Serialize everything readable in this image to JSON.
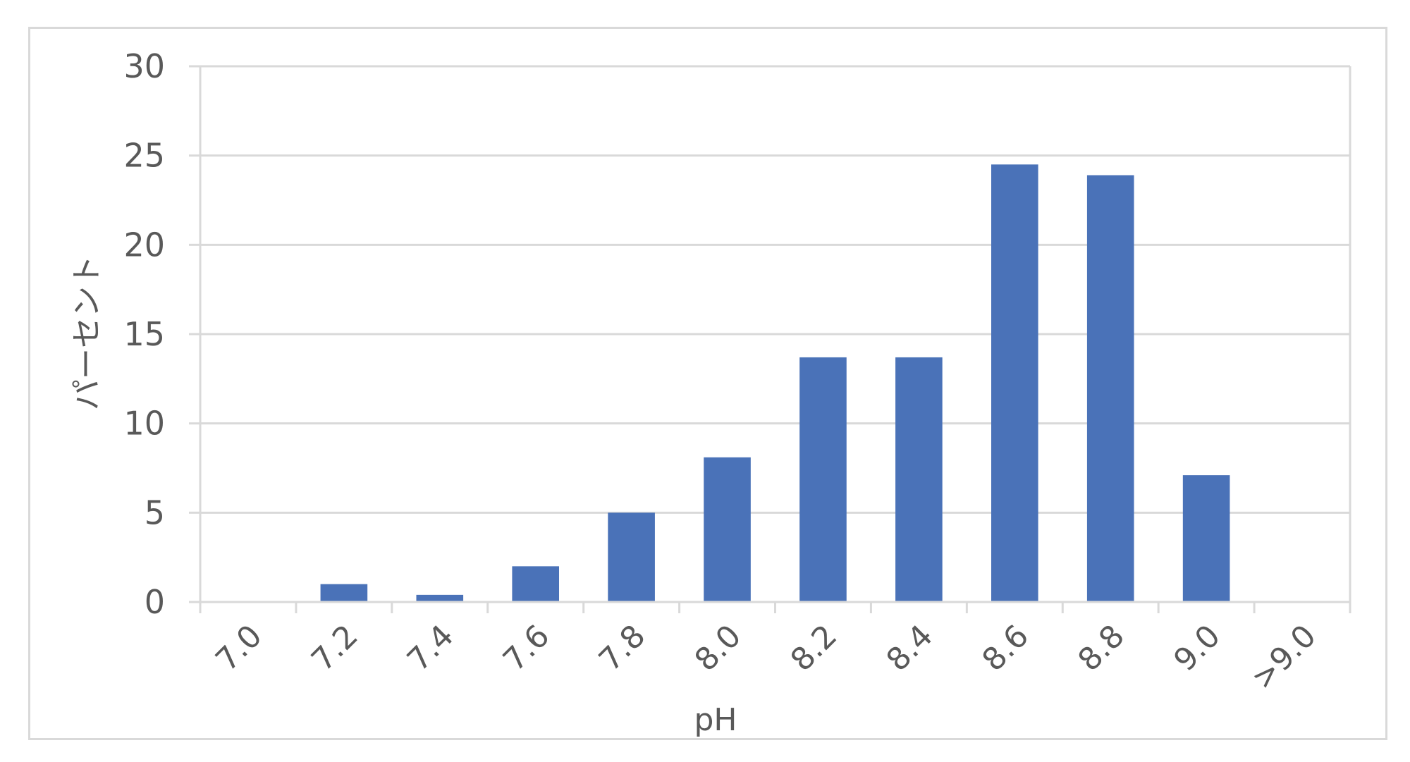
{
  "chart_data": {
    "type": "bar",
    "categories": [
      "7.0",
      "7.2",
      "7.4",
      "7.6",
      "7.8",
      "8.0",
      "8.2",
      "8.4",
      "8.6",
      "8.8",
      "9.0",
      ">9.0"
    ],
    "values": [
      0,
      1.0,
      0.4,
      2.0,
      5.0,
      8.1,
      13.7,
      13.7,
      24.5,
      23.9,
      7.1,
      0
    ],
    "xlabel": "pH",
    "ylabel": "パーセント",
    "ylim": [
      0,
      30
    ],
    "yticks": [
      0,
      5,
      10,
      15,
      20,
      25,
      30
    ],
    "grid": true,
    "legend": "none",
    "colors": {
      "bar": "#4a72b8",
      "grid": "#d9d9d9",
      "text": "#595959"
    }
  }
}
